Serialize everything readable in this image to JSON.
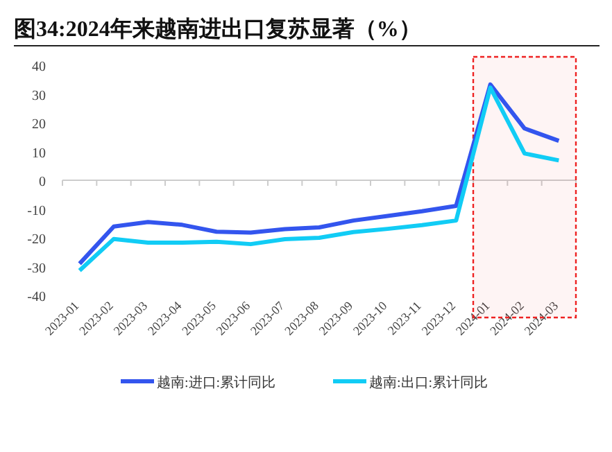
{
  "chart_data": {
    "type": "line",
    "title": "图34:2024年来越南进出口复苏显著（%）",
    "categories": [
      "2023-01",
      "2023-02",
      "2023-03",
      "2023-04",
      "2023-05",
      "2023-06",
      "2023-07",
      "2023-08",
      "2023-09",
      "2023-10",
      "2023-11",
      "2023-12",
      "2024-01",
      "2024-02",
      "2024-03"
    ],
    "series": [
      {
        "name": "越南:进口:累计同比",
        "color": "#3355ee",
        "values": [
          -29,
          -16.1,
          -14.5,
          -15.5,
          -17.9,
          -18.2,
          -17,
          -16.4,
          -14,
          -12.4,
          -10.8,
          -8.9,
          33.3,
          18,
          13.7
        ]
      },
      {
        "name": "越南:出口:累计同比",
        "color": "#11ccf5",
        "values": [
          -31.4,
          -20.4,
          -21.7,
          -21.7,
          -21.4,
          -22.2,
          -20.5,
          -20,
          -18,
          -16.9,
          -15.6,
          -14,
          32.2,
          9.3,
          6.9
        ]
      }
    ],
    "ylim": [
      -40,
      40
    ],
    "yticks": [
      -40,
      -30,
      -20,
      -10,
      0,
      10,
      20,
      30,
      40
    ],
    "legend": "bottom",
    "bands": [
      {
        "axis": "x",
        "from": "2024-01",
        "to": "2024-03",
        "color": "#ee2222"
      }
    ]
  }
}
